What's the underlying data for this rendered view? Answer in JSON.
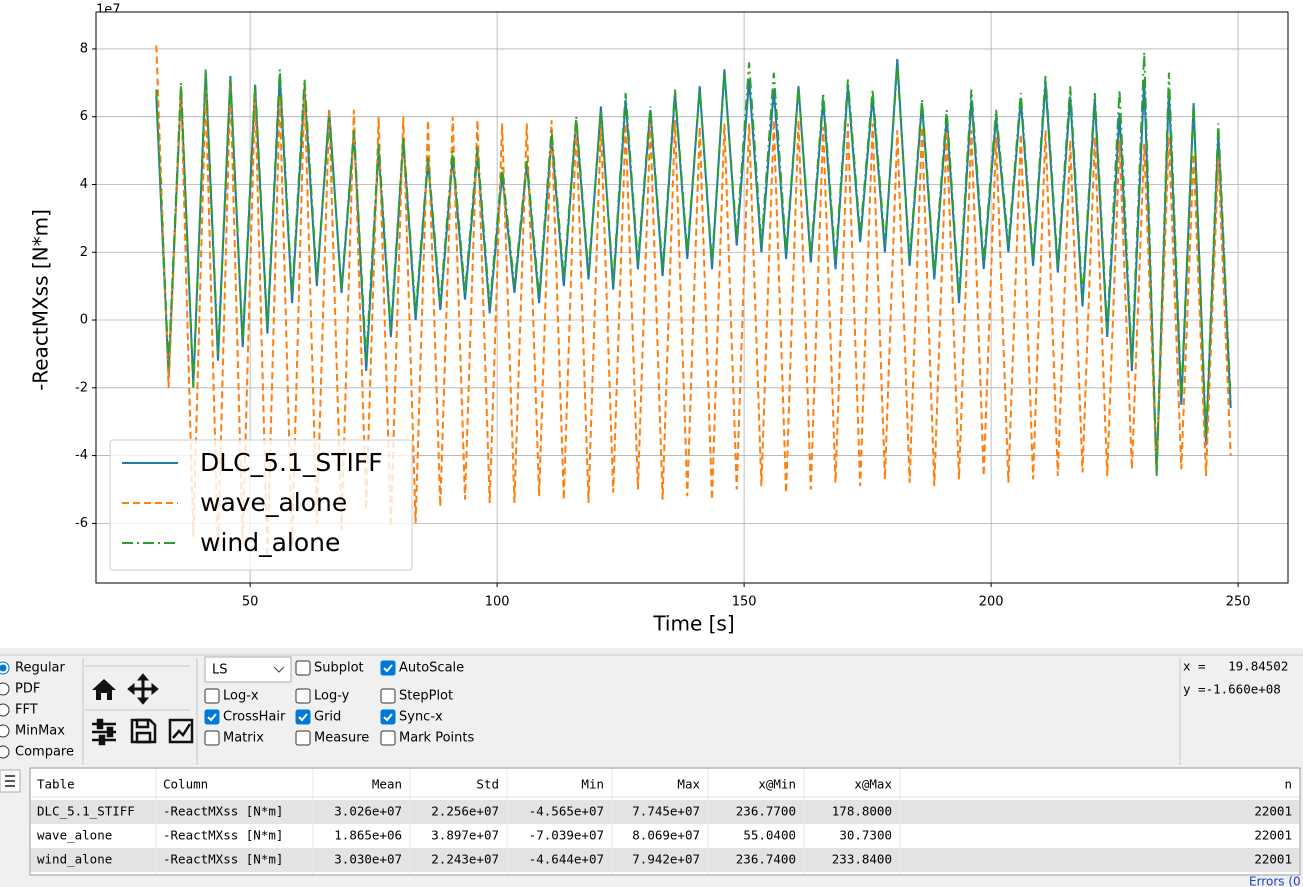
{
  "chart_data": {
    "type": "line",
    "y_offset_label": "1e7",
    "xlabel": "Time [s]",
    "ylabel": "-ReactMXss [N*m]",
    "xlim": [
      18.8,
      260.1
    ],
    "ylim": [
      -7.76,
      9.09
    ],
    "xticks": [
      50,
      100,
      150,
      200,
      250
    ],
    "yticks": [
      -6,
      -4,
      -2,
      0,
      2,
      4,
      6,
      8
    ],
    "grid": true,
    "legend": "lower left",
    "x": [
      31,
      33.5,
      36,
      38.5,
      41,
      43.5,
      46,
      48.5,
      51,
      53.5,
      56,
      58.5,
      61,
      63.5,
      66,
      68.5,
      71,
      73.5,
      76,
      78.5,
      81,
      83.5,
      86,
      88.5,
      91,
      93.5,
      96,
      98.5,
      101,
      103.5,
      106,
      108.5,
      111,
      113.5,
      116,
      118.5,
      121,
      123.5,
      126,
      128.5,
      131,
      133.5,
      136,
      138.5,
      141,
      143.5,
      146,
      148.5,
      151,
      153.5,
      156,
      158.5,
      161,
      163.5,
      166,
      168.5,
      171,
      173.5,
      176,
      178.5,
      181,
      183.5,
      186,
      188.5,
      191,
      193.5,
      196,
      198.5,
      201,
      203.5,
      206,
      208.5,
      211,
      213.5,
      216,
      218.5,
      221,
      223.5,
      226,
      228.5,
      231,
      233.5,
      236,
      238.5,
      241,
      243.5,
      246,
      248.5
    ],
    "series": [
      {
        "name": "DLC_5.1_STIFF",
        "color": "#1f77b4",
        "dash": "solid",
        "values": [
          6.6,
          -1.6,
          6.8,
          -1.9,
          7.3,
          -1.2,
          7.2,
          -0.8,
          6.9,
          -0.4,
          7.2,
          0.5,
          6.8,
          1.0,
          6.2,
          0.8,
          5.5,
          -1.5,
          5.0,
          -0.5,
          5.3,
          0.0,
          4.7,
          0.3,
          4.8,
          0.6,
          4.9,
          0.2,
          4.3,
          0.8,
          4.6,
          0.5,
          5.4,
          1.0,
          5.9,
          1.2,
          6.3,
          0.9,
          6.5,
          1.5,
          6.2,
          1.3,
          6.7,
          1.8,
          6.9,
          1.5,
          7.4,
          2.2,
          7.1,
          2.0,
          6.8,
          1.8,
          6.9,
          1.7,
          6.5,
          1.5,
          6.9,
          2.3,
          6.6,
          2.0,
          7.7,
          1.6,
          6.4,
          1.2,
          6.0,
          0.5,
          6.5,
          1.5,
          6.0,
          2.0,
          6.5,
          1.6,
          7.0,
          1.4,
          6.6,
          0.4,
          6.5,
          -0.5,
          6.1,
          -1.5,
          7.1,
          -4.5,
          6.8,
          -2.5,
          6.4,
          -3.7,
          5.5,
          -2.6
        ]
      },
      {
        "name": "wave_alone",
        "color": "#ff7f0e",
        "dash": "dashed",
        "values": [
          8.1,
          -2.0,
          6.9,
          -6.4,
          6.8,
          -6.8,
          7.0,
          -6.6,
          6.7,
          -7.0,
          6.6,
          -6.7,
          6.9,
          -6.0,
          6.2,
          -6.2,
          6.2,
          -5.6,
          6.0,
          -6.1,
          6.0,
          -6.0,
          5.9,
          -5.5,
          6.0,
          -5.3,
          5.9,
          -5.4,
          5.8,
          -5.4,
          5.8,
          -5.2,
          5.9,
          -5.3,
          5.9,
          -5.4,
          5.8,
          -5.1,
          5.8,
          -5.0,
          5.8,
          -5.3,
          5.9,
          -5.2,
          5.7,
          -5.3,
          5.8,
          -5.0,
          5.8,
          -4.9,
          5.9,
          -5.1,
          5.9,
          -5.0,
          5.7,
          -4.8,
          5.8,
          -4.9,
          5.8,
          -4.7,
          5.6,
          -4.8,
          5.7,
          -4.9,
          5.6,
          -4.7,
          5.6,
          -4.6,
          5.4,
          -4.8,
          5.5,
          -4.7,
          5.6,
          -4.6,
          5.3,
          -4.5,
          5.4,
          -4.6,
          5.3,
          -4.4,
          5.2,
          -4.5,
          5.4,
          -4.4,
          4.9,
          -4.6,
          4.8,
          -4.0
        ]
      },
      {
        "name": "wind_alone",
        "color": "#2ca02c",
        "dash": "dashdot",
        "values": [
          6.8,
          -1.4,
          7.0,
          -2.0,
          7.4,
          -1.0,
          7.1,
          -0.6,
          7.0,
          -0.2,
          7.4,
          0.7,
          7.1,
          1.2,
          6.0,
          0.9,
          5.6,
          -1.2,
          5.2,
          -0.3,
          5.4,
          0.2,
          4.8,
          0.5,
          5.0,
          0.8,
          5.1,
          0.4,
          4.5,
          1.0,
          4.7,
          0.7,
          5.6,
          1.2,
          6.0,
          1.4,
          6.2,
          1.1,
          6.7,
          1.7,
          6.3,
          1.5,
          6.8,
          2.0,
          6.8,
          1.7,
          7.3,
          2.4,
          7.6,
          2.2,
          7.3,
          2.0,
          6.9,
          1.9,
          6.7,
          1.7,
          7.1,
          2.5,
          6.8,
          2.2,
          7.5,
          1.8,
          6.5,
          1.4,
          6.2,
          0.7,
          6.8,
          1.7,
          6.2,
          2.2,
          6.7,
          1.8,
          7.2,
          1.6,
          6.9,
          0.6,
          6.7,
          -0.3,
          6.8,
          -1.3,
          7.9,
          -4.6,
          7.3,
          -2.3,
          6.4,
          -3.5,
          5.8,
          -2.4
        ]
      }
    ]
  },
  "controls": {
    "plot_types": [
      {
        "label": "Regular",
        "checked": true
      },
      {
        "label": "PDF",
        "checked": false
      },
      {
        "label": "FFT",
        "checked": false
      },
      {
        "label": "MinMax",
        "checked": false
      },
      {
        "label": "Compare",
        "checked": false
      }
    ],
    "dropdown": "LS",
    "options": [
      {
        "label": "Subplot",
        "checked": false
      },
      {
        "label": "AutoScale",
        "checked": true
      },
      {
        "label": "Log-x",
        "checked": false
      },
      {
        "label": "Log-y",
        "checked": false
      },
      {
        "label": "StepPlot",
        "checked": false
      },
      {
        "label": "CrossHair",
        "checked": true
      },
      {
        "label": "Grid",
        "checked": true
      },
      {
        "label": "Sync-x",
        "checked": true
      },
      {
        "label": "Matrix",
        "checked": false
      },
      {
        "label": "Measure",
        "checked": false
      },
      {
        "label": "Mark Points",
        "checked": false
      }
    ],
    "cursor_x": "x =   19.84502",
    "cursor_y": "y =-1.660e+08"
  },
  "table": {
    "columns": [
      "Table",
      "Column",
      "Mean",
      "Std",
      "Min",
      "Max",
      "x@Min",
      "x@Max",
      "n"
    ],
    "rows": [
      [
        "DLC_5.1_STIFF",
        "-ReactMXss [N*m]",
        "3.026e+07",
        "2.256e+07",
        "-4.565e+07",
        "7.745e+07",
        "236.7700",
        "178.8000",
        "22001"
      ],
      [
        "wave_alone",
        "-ReactMXss [N*m]",
        "1.865e+06",
        "3.897e+07",
        "-7.039e+07",
        "8.069e+07",
        "55.0400",
        "30.7300",
        "22001"
      ],
      [
        "wind_alone",
        "-ReactMXss [N*m]",
        "3.030e+07",
        "2.243e+07",
        "-4.644e+07",
        "7.942e+07",
        "236.7400",
        "233.8400",
        "22001"
      ]
    ]
  },
  "status": "Errors (0"
}
